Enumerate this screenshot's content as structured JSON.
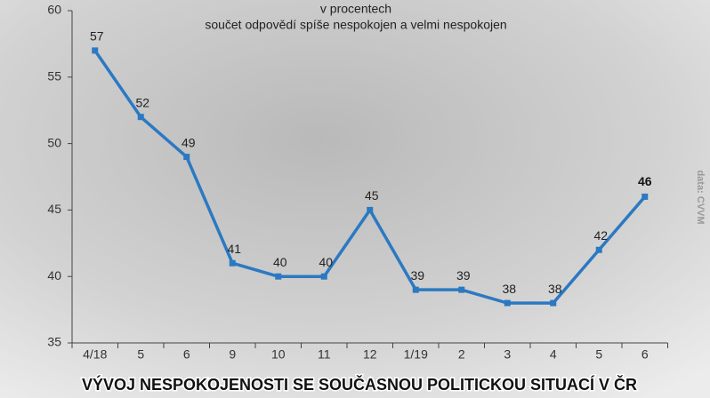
{
  "chart_data": {
    "type": "line",
    "title": "VÝVOJ NESPOKOJENOSTI SE SOUČASNOU POLITICKOU SITUACÍ V ČR",
    "subtitle": [
      "v procentech",
      "součet odpovědí spíše nespokojen a velmi nespokojen"
    ],
    "source": "data: CVVM",
    "categories": [
      "4/18",
      "5",
      "6",
      "9",
      "10",
      "11",
      "12",
      "1/19",
      "2",
      "3",
      "4",
      "5",
      "6"
    ],
    "values": [
      57,
      52,
      49,
      41,
      40,
      40,
      45,
      39,
      39,
      38,
      38,
      42,
      46
    ],
    "color": "#2b79c2",
    "ylim": [
      35,
      60
    ],
    "yticks": [
      35,
      40,
      45,
      50,
      55,
      60
    ],
    "grid": false
  }
}
